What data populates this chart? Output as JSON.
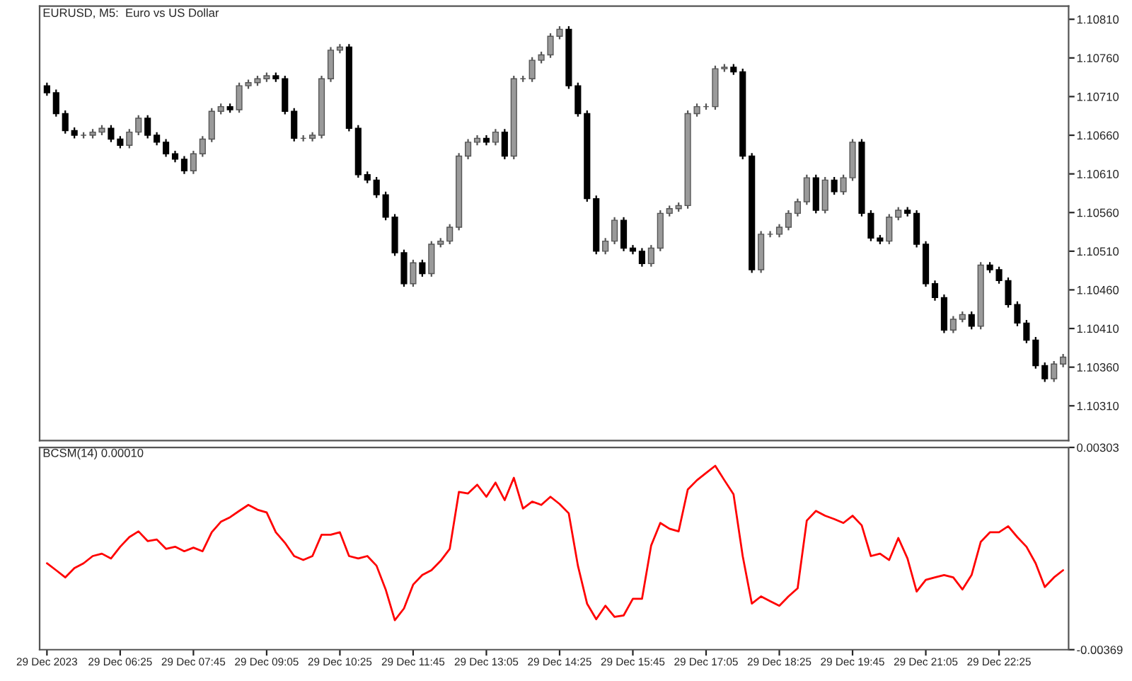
{
  "chart_data": [
    {
      "type": "candlestick",
      "title": "EURUSD, M5:  Euro vs US Dollar",
      "tick_labels": "y",
      "categories": [
        null,
        null,
        null,
        null,
        null,
        null,
        null,
        null,
        null,
        null,
        null,
        null,
        null,
        null,
        null,
        null,
        null,
        null,
        null,
        null,
        null,
        null,
        null,
        null,
        null,
        null,
        null,
        null,
        null,
        null,
        null,
        null,
        null,
        null,
        null,
        null,
        null,
        null,
        null,
        null,
        null,
        null,
        null,
        null,
        null,
        null,
        null,
        null,
        null,
        null,
        null,
        null,
        null,
        null,
        null,
        null,
        null,
        null,
        null,
        null,
        null,
        null,
        null,
        null,
        null,
        null,
        null,
        null,
        null,
        null,
        null,
        null,
        null,
        null,
        null,
        null,
        null,
        null,
        null,
        null,
        null,
        null,
        null,
        null,
        null,
        null,
        null,
        null,
        null,
        null,
        null,
        null,
        null,
        null,
        null,
        null,
        null,
        null,
        null,
        null,
        null,
        null,
        null,
        null,
        null,
        null,
        null,
        null,
        null,
        null,
        null,
        null
      ],
      "ohlc": [
        [
          1.10724,
          1.10728,
          1.10711,
          1.10715
        ],
        [
          1.10715,
          1.10719,
          1.10684,
          1.10688
        ],
        [
          1.10688,
          1.10692,
          1.10662,
          1.10666
        ],
        [
          1.10666,
          1.1067,
          1.10656,
          1.1066
        ],
        [
          1.1066,
          1.10664,
          1.10656,
          1.1066
        ],
        [
          1.1066,
          1.10668,
          1.10656,
          1.10664
        ],
        [
          1.10664,
          1.10673,
          1.1066,
          1.10669
        ],
        [
          1.10669,
          1.10673,
          1.10651,
          1.10655
        ],
        [
          1.10655,
          1.10659,
          1.10643,
          1.10647
        ],
        [
          1.10647,
          1.10668,
          1.10643,
          1.10664
        ],
        [
          1.10664,
          1.10686,
          1.1066,
          1.10682
        ],
        [
          1.10682,
          1.10686,
          1.10656,
          1.1066
        ],
        [
          1.1066,
          1.10664,
          1.10647,
          1.10651
        ],
        [
          1.10651,
          1.10655,
          1.10632,
          1.10636
        ],
        [
          1.10636,
          1.1064,
          1.10625,
          1.10629
        ],
        [
          1.10629,
          1.10633,
          1.1061,
          1.10614
        ],
        [
          1.10614,
          1.1064,
          1.1061,
          1.10636
        ],
        [
          1.10636,
          1.10659,
          1.10632,
          1.10655
        ],
        [
          1.10655,
          1.10695,
          1.10651,
          1.10691
        ],
        [
          1.10691,
          1.10701,
          1.10687,
          1.10697
        ],
        [
          1.10697,
          1.10701,
          1.10689,
          1.10693
        ],
        [
          1.10693,
          1.10728,
          1.10689,
          1.10724
        ],
        [
          1.10724,
          1.10732,
          1.1072,
          1.10728
        ],
        [
          1.10728,
          1.10737,
          1.10724,
          1.10733
        ],
        [
          1.10733,
          1.10741,
          1.10729,
          1.10737
        ],
        [
          1.10737,
          1.10741,
          1.10729,
          1.10733
        ],
        [
          1.10733,
          1.10737,
          1.10687,
          1.10691
        ],
        [
          1.10691,
          1.10695,
          1.10652,
          1.10656
        ],
        [
          1.10656,
          1.1066,
          1.10652,
          1.10656
        ],
        [
          1.10656,
          1.10664,
          1.10652,
          1.1066
        ],
        [
          1.1066,
          1.10737,
          1.10656,
          1.10733
        ],
        [
          1.10733,
          1.10774,
          1.10729,
          1.1077
        ],
        [
          1.1077,
          1.10778,
          1.10766,
          1.10774
        ],
        [
          1.10774,
          1.10778,
          1.10665,
          1.10669
        ],
        [
          1.10669,
          1.10673,
          1.10605,
          1.10609
        ],
        [
          1.10609,
          1.10613,
          1.10598,
          1.10602
        ],
        [
          1.10602,
          1.10606,
          1.10579,
          1.10583
        ],
        [
          1.10583,
          1.10587,
          1.1055,
          1.10554
        ],
        [
          1.10554,
          1.10558,
          1.10504,
          1.10508
        ],
        [
          1.10508,
          1.10512,
          1.10464,
          1.10468
        ],
        [
          1.10468,
          1.10499,
          1.10464,
          1.10495
        ],
        [
          1.10495,
          1.10499,
          1.10477,
          1.10481
        ],
        [
          1.10481,
          1.10523,
          1.10477,
          1.10519
        ],
        [
          1.10519,
          1.10527,
          1.10515,
          1.10523
        ],
        [
          1.10523,
          1.10545,
          1.10519,
          1.10541
        ],
        [
          1.10541,
          1.10637,
          1.10537,
          1.10633
        ],
        [
          1.10633,
          1.10655,
          1.10629,
          1.10651
        ],
        [
          1.10651,
          1.1066,
          1.10647,
          1.10656
        ],
        [
          1.10656,
          1.1066,
          1.10647,
          1.10651
        ],
        [
          1.10651,
          1.10668,
          1.10647,
          1.10664
        ],
        [
          1.10664,
          1.10668,
          1.10629,
          1.10633
        ],
        [
          1.10633,
          1.10737,
          1.10629,
          1.10733
        ],
        [
          1.10733,
          1.10737,
          1.10729,
          1.10733
        ],
        [
          1.10733,
          1.10761,
          1.10729,
          1.10757
        ],
        [
          1.10757,
          1.10768,
          1.10753,
          1.10764
        ],
        [
          1.10764,
          1.10792,
          1.1076,
          1.10788
        ],
        [
          1.10788,
          1.10801,
          1.10784,
          1.10797
        ],
        [
          1.10797,
          1.10801,
          1.1072,
          1.10724
        ],
        [
          1.10724,
          1.10728,
          1.10684,
          1.10688
        ],
        [
          1.10688,
          1.10692,
          1.10574,
          1.10578
        ],
        [
          1.10578,
          1.10582,
          1.10506,
          1.1051
        ],
        [
          1.1051,
          1.10527,
          1.10506,
          1.10523
        ],
        [
          1.10523,
          1.10554,
          1.10519,
          1.1055
        ],
        [
          1.1055,
          1.10554,
          1.1051,
          1.10514
        ],
        [
          1.10514,
          1.10518,
          1.10506,
          1.1051
        ],
        [
          1.1051,
          1.10514,
          1.1049,
          1.10494
        ],
        [
          1.10494,
          1.10518,
          1.1049,
          1.10514
        ],
        [
          1.10514,
          1.10563,
          1.1051,
          1.10559
        ],
        [
          1.10559,
          1.10569,
          1.10555,
          1.10565
        ],
        [
          1.10565,
          1.10573,
          1.10561,
          1.10569
        ],
        [
          1.10569,
          1.10692,
          1.10565,
          1.10688
        ],
        [
          1.10688,
          1.10701,
          1.10684,
          1.10697
        ],
        [
          1.10697,
          1.10701,
          1.10693,
          1.10697
        ],
        [
          1.10697,
          1.1075,
          1.10693,
          1.10746
        ],
        [
          1.10746,
          1.10752,
          1.10742,
          1.10748
        ],
        [
          1.10748,
          1.10752,
          1.10738,
          1.10742
        ],
        [
          1.10742,
          1.10746,
          1.10629,
          1.10633
        ],
        [
          1.10633,
          1.10637,
          1.10482,
          1.10486
        ],
        [
          1.10486,
          1.10536,
          1.10482,
          1.10532
        ],
        [
          1.10532,
          1.10536,
          1.10528,
          1.10532
        ],
        [
          1.10532,
          1.10545,
          1.10528,
          1.10541
        ],
        [
          1.10541,
          1.10563,
          1.10537,
          1.10559
        ],
        [
          1.10559,
          1.10578,
          1.10555,
          1.10574
        ],
        [
          1.10574,
          1.10609,
          1.1057,
          1.10605
        ],
        [
          1.10605,
          1.10609,
          1.10559,
          1.10563
        ],
        [
          1.10563,
          1.10606,
          1.10559,
          1.10602
        ],
        [
          1.10602,
          1.10606,
          1.10583,
          1.10587
        ],
        [
          1.10587,
          1.10609,
          1.10583,
          1.10605
        ],
        [
          1.10605,
          1.10655,
          1.10601,
          1.10651
        ],
        [
          1.10651,
          1.10655,
          1.10555,
          1.10559
        ],
        [
          1.10559,
          1.10563,
          1.10523,
          1.10527
        ],
        [
          1.10527,
          1.10531,
          1.10519,
          1.10523
        ],
        [
          1.10523,
          1.10558,
          1.10519,
          1.10554
        ],
        [
          1.10554,
          1.10567,
          1.1055,
          1.10563
        ],
        [
          1.10563,
          1.10567,
          1.10555,
          1.10559
        ],
        [
          1.10559,
          1.10563,
          1.10515,
          1.10519
        ],
        [
          1.10519,
          1.10523,
          1.10464,
          1.10468
        ],
        [
          1.10468,
          1.10472,
          1.10446,
          1.1045
        ],
        [
          1.1045,
          1.10454,
          1.10404,
          1.10408
        ],
        [
          1.10408,
          1.10426,
          1.10404,
          1.10422
        ],
        [
          1.10422,
          1.10432,
          1.10418,
          1.10428
        ],
        [
          1.10428,
          1.10432,
          1.10409,
          1.10413
        ],
        [
          1.10413,
          1.10496,
          1.10409,
          1.10492
        ],
        [
          1.10492,
          1.10496,
          1.10482,
          1.10486
        ],
        [
          1.10486,
          1.1049,
          1.10468,
          1.10472
        ],
        [
          1.10472,
          1.10476,
          1.10437,
          1.10441
        ],
        [
          1.10441,
          1.10445,
          1.10413,
          1.10417
        ],
        [
          1.10417,
          1.10421,
          1.10391,
          1.10395
        ],
        [
          1.10395,
          1.10399,
          1.10358,
          1.10362
        ],
        [
          1.10362,
          1.10366,
          1.10341,
          1.10345
        ],
        [
          1.10345,
          1.10368,
          1.10341,
          1.10364
        ],
        [
          1.10364,
          1.10377,
          1.1036,
          1.10373
        ]
      ],
      "ylim": [
        1.10265,
        1.10827
      ],
      "yticks": [
        {
          "value": 1.1031,
          "label": "1.10310"
        },
        {
          "value": 1.1036,
          "label": "1.10360"
        },
        {
          "value": 1.1041,
          "label": "1.10410"
        },
        {
          "value": 1.1046,
          "label": "1.10460"
        },
        {
          "value": 1.1051,
          "label": "1.10510"
        },
        {
          "value": 1.1056,
          "label": "1.10560"
        },
        {
          "value": 1.1061,
          "label": "1.10610"
        },
        {
          "value": 1.1066,
          "label": "1.10660"
        },
        {
          "value": 1.1071,
          "label": "1.10710"
        },
        {
          "value": 1.1076,
          "label": "1.10760"
        },
        {
          "value": 1.1081,
          "label": "1.10810"
        }
      ]
    },
    {
      "type": "line",
      "title": "BCSM(14) 0.00010",
      "categories": [
        "29 Dec 2023",
        null,
        null,
        null,
        null,
        null,
        null,
        null,
        "29 Dec 06:25",
        null,
        null,
        null,
        null,
        null,
        null,
        null,
        "29 Dec 07:45",
        null,
        null,
        null,
        null,
        null,
        null,
        null,
        "29 Dec 09:05",
        null,
        null,
        null,
        null,
        null,
        null,
        null,
        "29 Dec 10:25",
        null,
        null,
        null,
        null,
        null,
        null,
        null,
        "29 Dec 11:45",
        null,
        null,
        null,
        null,
        null,
        null,
        null,
        "29 Dec 13:05",
        null,
        null,
        null,
        null,
        null,
        null,
        null,
        "29 Dec 14:25",
        null,
        null,
        null,
        null,
        null,
        null,
        null,
        "29 Dec 15:45",
        null,
        null,
        null,
        null,
        null,
        null,
        null,
        "29 Dec 17:05",
        null,
        null,
        null,
        null,
        null,
        null,
        null,
        "29 Dec 18:25",
        null,
        null,
        null,
        null,
        null,
        null,
        null,
        "29 Dec 19:45",
        null,
        null,
        null,
        null,
        null,
        null,
        null,
        "29 Dec 21:05",
        null,
        null,
        null,
        null,
        null,
        null,
        null,
        "29 Dec 22:25",
        null,
        null,
        null,
        null,
        null,
        null,
        null
      ],
      "series": [
        {
          "color": "#ff0000",
          "values": [
            -0.00082,
            -0.00105,
            -0.00129,
            -0.00098,
            -0.00082,
            -0.00058,
            -0.0005,
            -0.00066,
            -0.00027,
            5e-05,
            0.00024,
            -8e-05,
            -3e-05,
            -0.00034,
            -0.00027,
            -0.00042,
            -0.0003,
            -0.00042,
            0.00021,
            0.00056,
            0.00071,
            0.00092,
            0.00112,
            0.00096,
            0.00087,
            0.00021,
            -0.00014,
            -0.00058,
            -0.00071,
            -0.00058,
            0.00013,
            0.00013,
            0.00021,
            -0.00058,
            -0.00066,
            -0.00058,
            -0.0009,
            -0.00169,
            -0.00271,
            -0.00232,
            -0.00153,
            -0.00121,
            -0.00105,
            -0.00074,
            -0.00034,
            0.00155,
            0.0015,
            0.00179,
            0.00139,
            0.00186,
            0.00128,
            0.00202,
            0.001,
            0.00123,
            0.00112,
            0.00139,
            0.00115,
            0.00084,
            -0.0009,
            -0.00216,
            -0.00268,
            -0.00223,
            -0.0026,
            -0.00255,
            -0.002,
            -0.002,
            -0.00023,
            0.00052,
            0.00033,
            0.00024,
            0.00163,
            0.00194,
            0.00218,
            0.00242,
            0.00194,
            0.00147,
            -0.00058,
            -0.00216,
            -0.00192,
            -0.00208,
            -0.00223,
            -0.00192,
            -0.00165,
            0.0006,
            0.00092,
            0.00076,
            0.00065,
            0.00052,
            0.00076,
            0.00044,
            -0.00058,
            -0.0005,
            -0.00071,
            2e-05,
            -0.00066,
            -0.00176,
            -0.00137,
            -0.00129,
            -0.00121,
            -0.00129,
            -0.00169,
            -0.00121,
            -0.00011,
            0.00021,
            0.00021,
            0.00041,
            5e-05,
            -0.00027,
            -0.00082,
            -0.00161,
            -0.00129,
            -0.00105
          ]
        }
      ],
      "ylim": [
        -0.00369,
        0.00303
      ],
      "yticks": [
        -0.00369,
        0.00303
      ]
    }
  ]
}
